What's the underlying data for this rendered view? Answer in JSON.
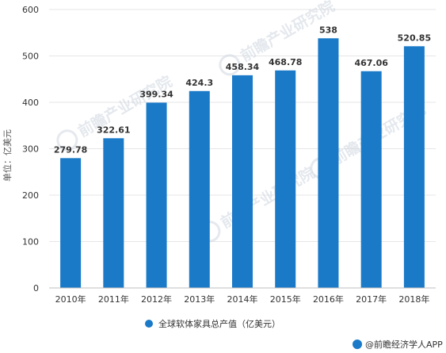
{
  "chart_data": {
    "type": "bar",
    "categories": [
      "2010年",
      "2011年",
      "2012年",
      "2013年",
      "2014年",
      "2015年",
      "2016年",
      "2017年",
      "2018年"
    ],
    "series": [
      {
        "name": "全球软体家具总产值（亿美元）",
        "values": [
          279.78,
          322.61,
          399.34,
          424.3,
          458.34,
          468.78,
          538,
          467.06,
          520.85
        ],
        "labels": [
          "279.78",
          "322.61",
          "399.34",
          "424.3",
          "458.34",
          "468.78",
          "538",
          "467.06",
          "520.85"
        ],
        "color": "#1a7ac8"
      }
    ],
    "ylabel": "单位：亿美元",
    "ylim": [
      0,
      600
    ],
    "yticks": [
      0,
      100,
      200,
      300,
      400,
      500,
      600
    ],
    "grid": true,
    "legend": "bottom-center"
  },
  "watermark": {
    "text": "前瞻产业研究院"
  },
  "footer": {
    "text": "@前瞻经济学人APP"
  }
}
